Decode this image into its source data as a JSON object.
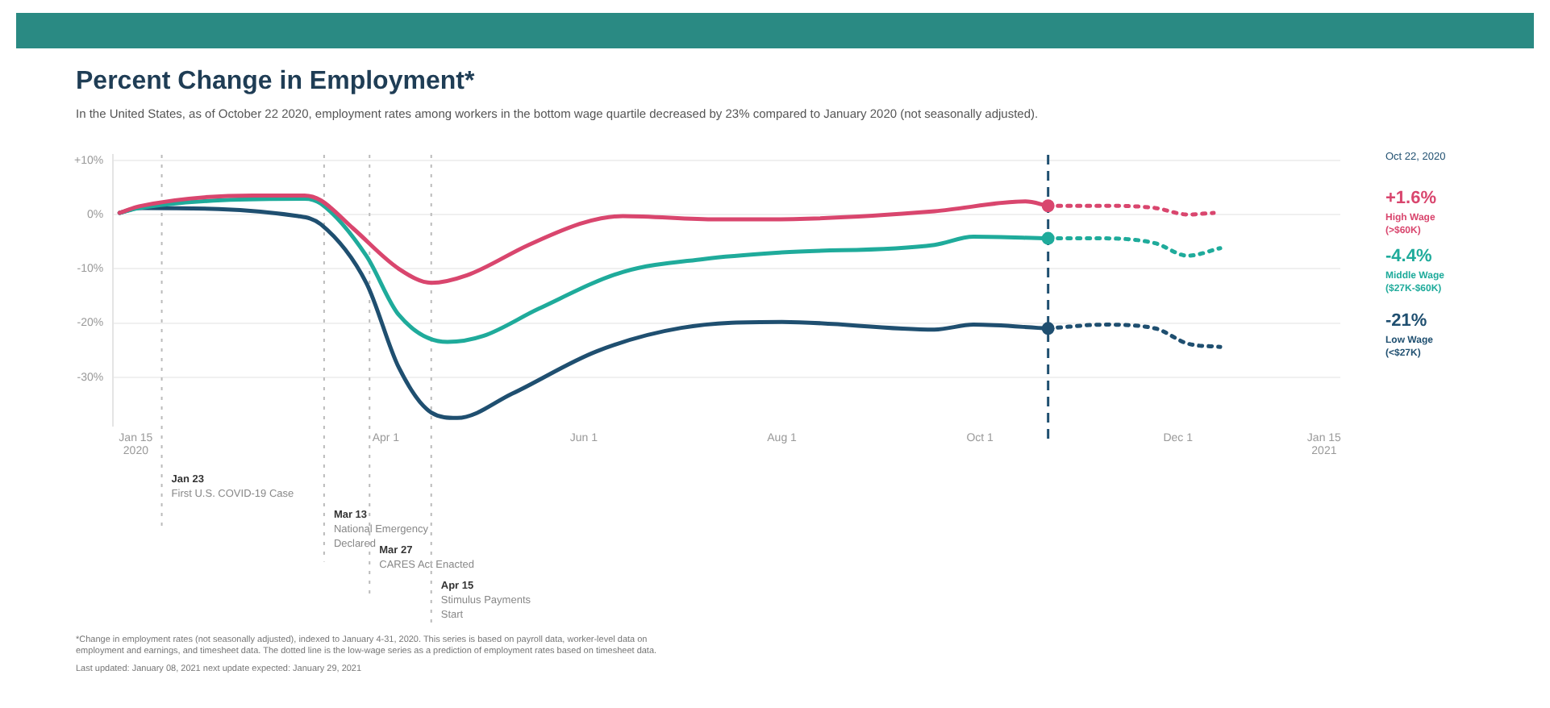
{
  "chart_data": {
    "type": "line",
    "title": "Percent Change in Employment*",
    "subtitle": "In the United States, as of October 22 2020, employment rates among workers in the bottom wage quartile decreased by 23% compared to January 2020 (not seasonally adjusted).",
    "legend_title": "Oct 22, 2020",
    "series": [
      {
        "name": "High Wage (>$60K)",
        "color": "#d9466e",
        "x": [
          "2020-01-10",
          "2020-01-16",
          "2020-02-20",
          "2020-03-07",
          "2020-03-12",
          "2020-03-22",
          "2020-04-05",
          "2020-04-15",
          "2020-04-26",
          "2020-05-15",
          "2020-06-01",
          "2020-06-13",
          "2020-07-12",
          "2020-07-28",
          "2020-09-17",
          "2020-10-15",
          "2020-10-22"
        ],
        "values": [
          0.3,
          1.5,
          3.5,
          3.5,
          2.6,
          -2.6,
          -10,
          -12.6,
          -11.2,
          -5.6,
          -1.5,
          -0.3,
          -0.9,
          -0.9,
          0.6,
          2.4,
          1.6
        ]
      },
      {
        "name": "Middle Wage ($27K-$60K)",
        "color": "#1fab9b",
        "x": [
          "2020-01-10",
          "2020-01-16",
          "2020-03-07",
          "2020-03-12",
          "2020-03-26",
          "2020-04-05",
          "2020-04-20",
          "2020-05-01",
          "2020-05-18",
          "2020-06-13",
          "2020-07-08",
          "2020-08-01",
          "2020-09-17",
          "2020-09-29",
          "2020-10-22"
        ],
        "values": [
          0.3,
          1.2,
          2.9,
          2,
          -7.6,
          -18.5,
          -23.5,
          -22.4,
          -17.4,
          -10.6,
          -8.2,
          -7,
          -5.6,
          -4.1,
          -4.4
        ]
      },
      {
        "name": "Low Wage (<$27K)",
        "color": "#1f4f70",
        "x": [
          "2020-01-10",
          "2020-01-16",
          "2020-03-05",
          "2020-03-12",
          "2020-03-26",
          "2020-04-05",
          "2020-04-15",
          "2020-04-23",
          "2020-05-10",
          "2020-06-05",
          "2020-07-01",
          "2020-08-01",
          "2020-09-17",
          "2020-09-29",
          "2020-10-22"
        ],
        "values": [
          0.3,
          1.2,
          -0.3,
          -1.8,
          -12.6,
          -28.2,
          -36.5,
          -37.5,
          -33,
          -25.2,
          -20.9,
          -19.8,
          -21.2,
          -20.3,
          -21
        ]
      },
      {
        "color": "#d9466e",
        "line_style": "dotted",
        "x": [
          "2020-10-22",
          "2020-11-08",
          "2020-11-24",
          "2020-12-04",
          "2020-12-12"
        ],
        "values": [
          1.6,
          1.6,
          1.2,
          0,
          0.3
        ]
      },
      {
        "color": "#1fab9b",
        "line_style": "dotted",
        "x": [
          "2020-10-22",
          "2020-11-08",
          "2020-11-24",
          "2020-12-04",
          "2020-12-14"
        ],
        "values": [
          -4.4,
          -4.4,
          -5.3,
          -7.6,
          -6.2
        ]
      },
      {
        "color": "#1f4f70",
        "line_style": "dotted",
        "x": [
          "2020-10-22",
          "2020-11-08",
          "2020-11-24",
          "2020-12-04",
          "2020-12-14"
        ],
        "values": [
          -21,
          -20.3,
          -21,
          -23.8,
          -24.4
        ]
      }
    ],
    "xlim": [
      "2020-01-08",
      "2021-01-20"
    ],
    "xticks": [
      {
        "value": "2020-01-15",
        "label": "Jan 15\n2020"
      },
      {
        "value": "2020-04-01",
        "label": "Apr 1"
      },
      {
        "value": "2020-06-01",
        "label": "Jun 1"
      },
      {
        "value": "2020-08-01",
        "label": "Aug 1"
      },
      {
        "value": "2020-10-01",
        "label": "Oct 1"
      },
      {
        "value": "2020-12-01",
        "label": "Dec 1"
      },
      {
        "value": "2021-01-15",
        "label": "Jan 15\n2021"
      }
    ],
    "ylim": [
      -39,
      11
    ],
    "yticks": [
      {
        "value": 10,
        "label": "+10%"
      },
      {
        "value": 0,
        "label": "0%"
      },
      {
        "value": -10,
        "label": "-10%"
      },
      {
        "value": -20,
        "label": "-20%"
      },
      {
        "value": -30,
        "label": "-30%"
      }
    ],
    "grid": "y",
    "legend": "right",
    "line_style": "solid",
    "ref_lines": [
      {
        "axis": "x",
        "value": "2020-01-23",
        "label": "Jan 23\nFirst U.S. COVID-19 Case",
        "color": "#bbbbbb",
        "line_style": "dotted"
      },
      {
        "axis": "x",
        "value": "2020-03-13",
        "label": "Mar 13\nNational Emergency\nDeclared",
        "color": "#bbbbbb",
        "line_style": "dotted"
      },
      {
        "axis": "x",
        "value": "2020-03-27",
        "label": "Mar 27\nCARES Act Enacted",
        "color": "#bbbbbb",
        "line_style": "dotted"
      },
      {
        "axis": "x",
        "value": "2020-04-15",
        "label": "Apr 15\nStimulus Payments\nStart",
        "color": "#bbbbbb",
        "line_style": "dotted"
      },
      {
        "axis": "x",
        "value": "2020-10-22",
        "color": "#1f4f70",
        "line_style": "dashed"
      }
    ],
    "annotations": [
      "+1.6%",
      "-4.4%",
      "-21%",
      "*Change in employment rates (not seasonally adjusted), indexed to January 4-31, 2020. This series is based on payroll data, worker-level data on employment and earnings, and timesheet data. The dotted line is the low-wage series as a prediction of employment rates based on timesheet data.",
      "Last updated: January 08, 2021     next update expected: January 29, 2021"
    ]
  }
}
